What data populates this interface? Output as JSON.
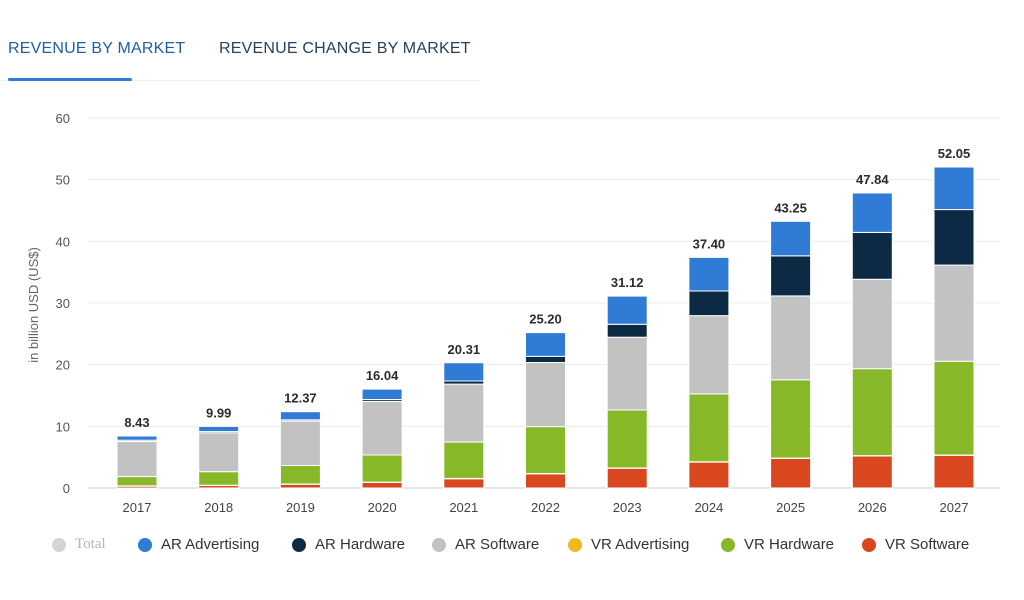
{
  "tabs": [
    {
      "label": "REVENUE BY MARKET",
      "active": true
    },
    {
      "label": "REVENUE CHANGE BY MARKET",
      "active": false
    }
  ],
  "chart_data": {
    "type": "bar",
    "stacked": true,
    "ylabel": "in billion USD (US$)",
    "ylim": [
      0,
      60
    ],
    "yticks": [
      0,
      10,
      20,
      30,
      40,
      50,
      60
    ],
    "categories": [
      "2017",
      "2018",
      "2019",
      "2020",
      "2021",
      "2022",
      "2023",
      "2024",
      "2025",
      "2026",
      "2027"
    ],
    "totals": [
      "8.43",
      "9.99",
      "12.37",
      "16.04",
      "20.31",
      "25.20",
      "31.12",
      "37.40",
      "43.25",
      "47.84",
      "52.05"
    ],
    "series": [
      {
        "name": "VR Software",
        "color": "#d9471f",
        "values": [
          0.3,
          0.4,
          0.6,
          0.9,
          1.5,
          2.3,
          3.2,
          4.2,
          4.8,
          5.2,
          5.3
        ]
      },
      {
        "name": "VR Advertising",
        "color": "#f2b81e",
        "values": [
          0.05,
          0.05,
          0.05,
          0.05,
          0.05,
          0.05,
          0.05,
          0.05,
          0.05,
          0.05,
          0.05
        ]
      },
      {
        "name": "VR Hardware",
        "color": "#86b828",
        "values": [
          1.5,
          2.2,
          3.0,
          4.4,
          5.9,
          7.6,
          9.4,
          11.0,
          12.7,
          14.1,
          15.2
        ]
      },
      {
        "name": "AR Software",
        "color": "#c2c2c2",
        "values": [
          5.7,
          6.3,
          7.2,
          8.7,
          9.4,
          10.4,
          11.8,
          12.7,
          13.6,
          14.5,
          15.6
        ]
      },
      {
        "name": "AR Hardware",
        "color": "#0d2a44",
        "values": [
          0.2,
          0.2,
          0.2,
          0.3,
          0.5,
          1.0,
          2.1,
          4.0,
          6.5,
          7.6,
          9.0
        ]
      },
      {
        "name": "AR Advertising",
        "color": "#2f7bd6",
        "values": [
          0.68,
          0.84,
          1.32,
          1.69,
          2.96,
          3.85,
          4.57,
          5.45,
          5.6,
          6.39,
          6.9
        ]
      }
    ],
    "grid": true
  },
  "legend": [
    {
      "label": "Total",
      "color": "#d4d4d4",
      "muted": true
    },
    {
      "label": "AR Advertising",
      "color": "#2f7bd6"
    },
    {
      "label": "AR Hardware",
      "color": "#0d2a44"
    },
    {
      "label": "AR Software",
      "color": "#c2c2c2"
    },
    {
      "label": "VR Advertising",
      "color": "#f2b81e"
    },
    {
      "label": "VR Hardware",
      "color": "#86b828"
    },
    {
      "label": "VR Software",
      "color": "#d9471f"
    }
  ]
}
